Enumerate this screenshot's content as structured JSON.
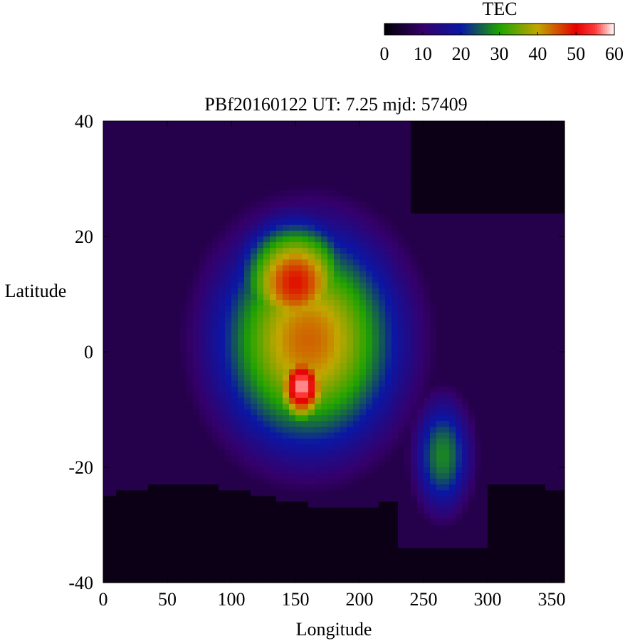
{
  "chart_data": {
    "type": "heatmap",
    "title": "PBf20160122  UT: 7.25  mjd: 57409",
    "xlabel": "Longitude",
    "ylabel": "Latitude",
    "xlim": [
      0,
      360
    ],
    "ylim": [
      -40,
      40
    ],
    "x_ticks": [
      0,
      50,
      100,
      150,
      200,
      250,
      300,
      350
    ],
    "y_ticks": [
      -40,
      -20,
      0,
      20,
      40
    ],
    "grid": false,
    "colorbar": {
      "label": "TEC",
      "range": [
        0,
        60
      ],
      "ticks": [
        0,
        10,
        20,
        30,
        40,
        50,
        60
      ],
      "placement": "top-right",
      "color_stops": [
        {
          "value": 0,
          "color": "#000000"
        },
        {
          "value": 10,
          "color": "#35006b"
        },
        {
          "value": 20,
          "color": "#0a17a5"
        },
        {
          "value": 30,
          "color": "#1fa300"
        },
        {
          "value": 40,
          "color": "#c2a600"
        },
        {
          "value": 50,
          "color": "#e40000"
        },
        {
          "value": 55,
          "color": "#ff3a3a"
        },
        {
          "value": 60,
          "color": "#ffffff"
        }
      ]
    },
    "features": [
      {
        "name": "equatorial anomaly peak",
        "longitude": 155,
        "latitude": -6,
        "tec": 58,
        "spread_lon": 22,
        "spread_lat": 7
      },
      {
        "name": "northern crest",
        "longitude": 150,
        "latitude": 12,
        "tec": 49,
        "spread_lon": 45,
        "spread_lat": 11
      },
      {
        "name": "low-TEC southern region",
        "latitude_below": -25,
        "tec": 2
      },
      {
        "name": "low-TEC northeast region",
        "longitude_above": 240,
        "latitude_above": 24,
        "tec": 2
      }
    ]
  }
}
